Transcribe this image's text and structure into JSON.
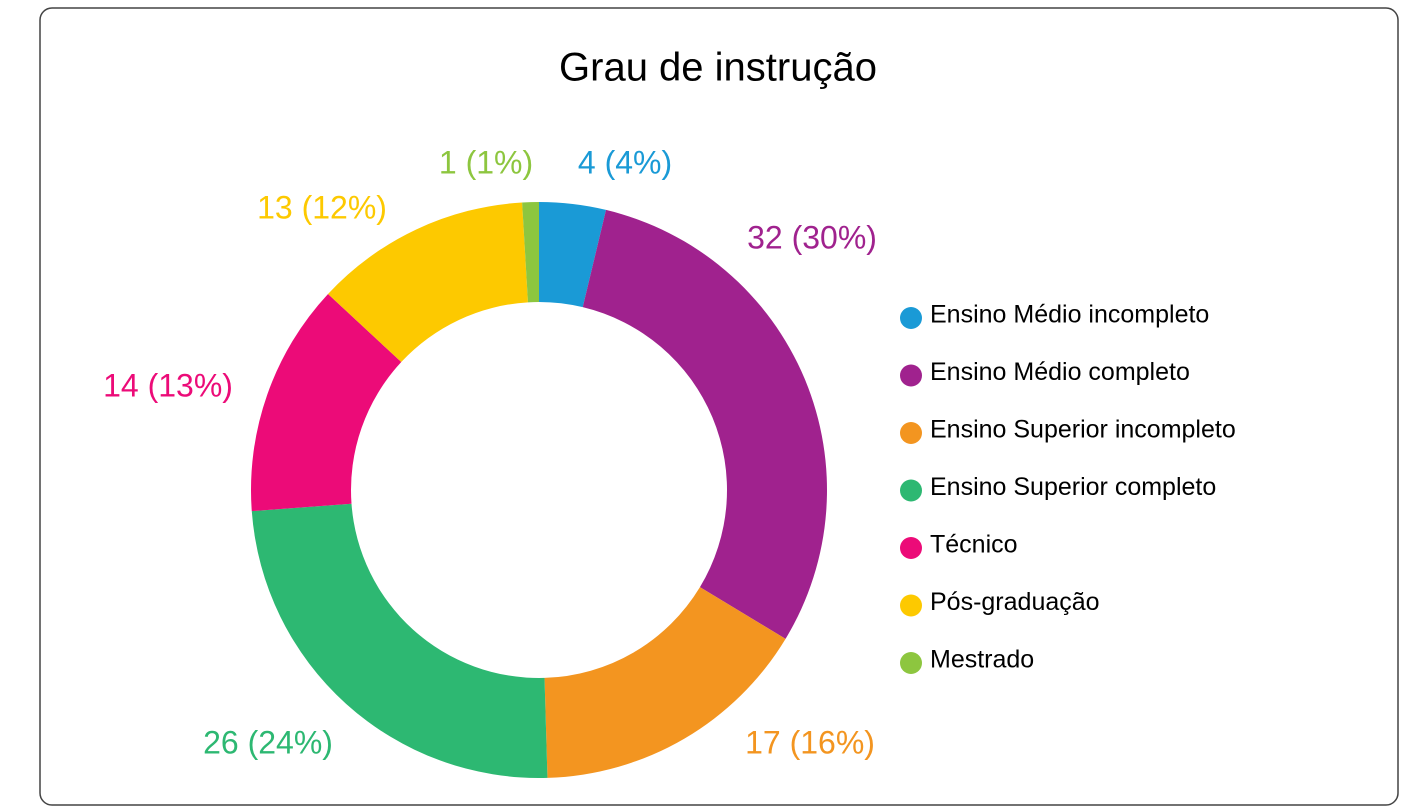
{
  "chart_data": {
    "type": "donut",
    "title": "Grau de instrução",
    "categories": [
      "Ensino Médio incompleto",
      "Ensino Médio completo",
      "Ensino Superior incompleto",
      "Ensino Superior completo",
      "Técnico",
      "Pós-graduação",
      "Mestrado"
    ],
    "values": [
      4,
      32,
      17,
      26,
      14,
      13,
      1
    ],
    "value_labels": [
      "4 (4%)",
      "32 (30%)",
      "17 (16%)",
      "26 (24%)",
      "14 (13%)",
      "13 (12%)",
      "1 (1%)"
    ],
    "colors": [
      "#1a9ad6",
      "#a0228e",
      "#f39520",
      "#2db872",
      "#ec0b78",
      "#fdc900",
      "#8dc63f"
    ],
    "legend": "right"
  }
}
